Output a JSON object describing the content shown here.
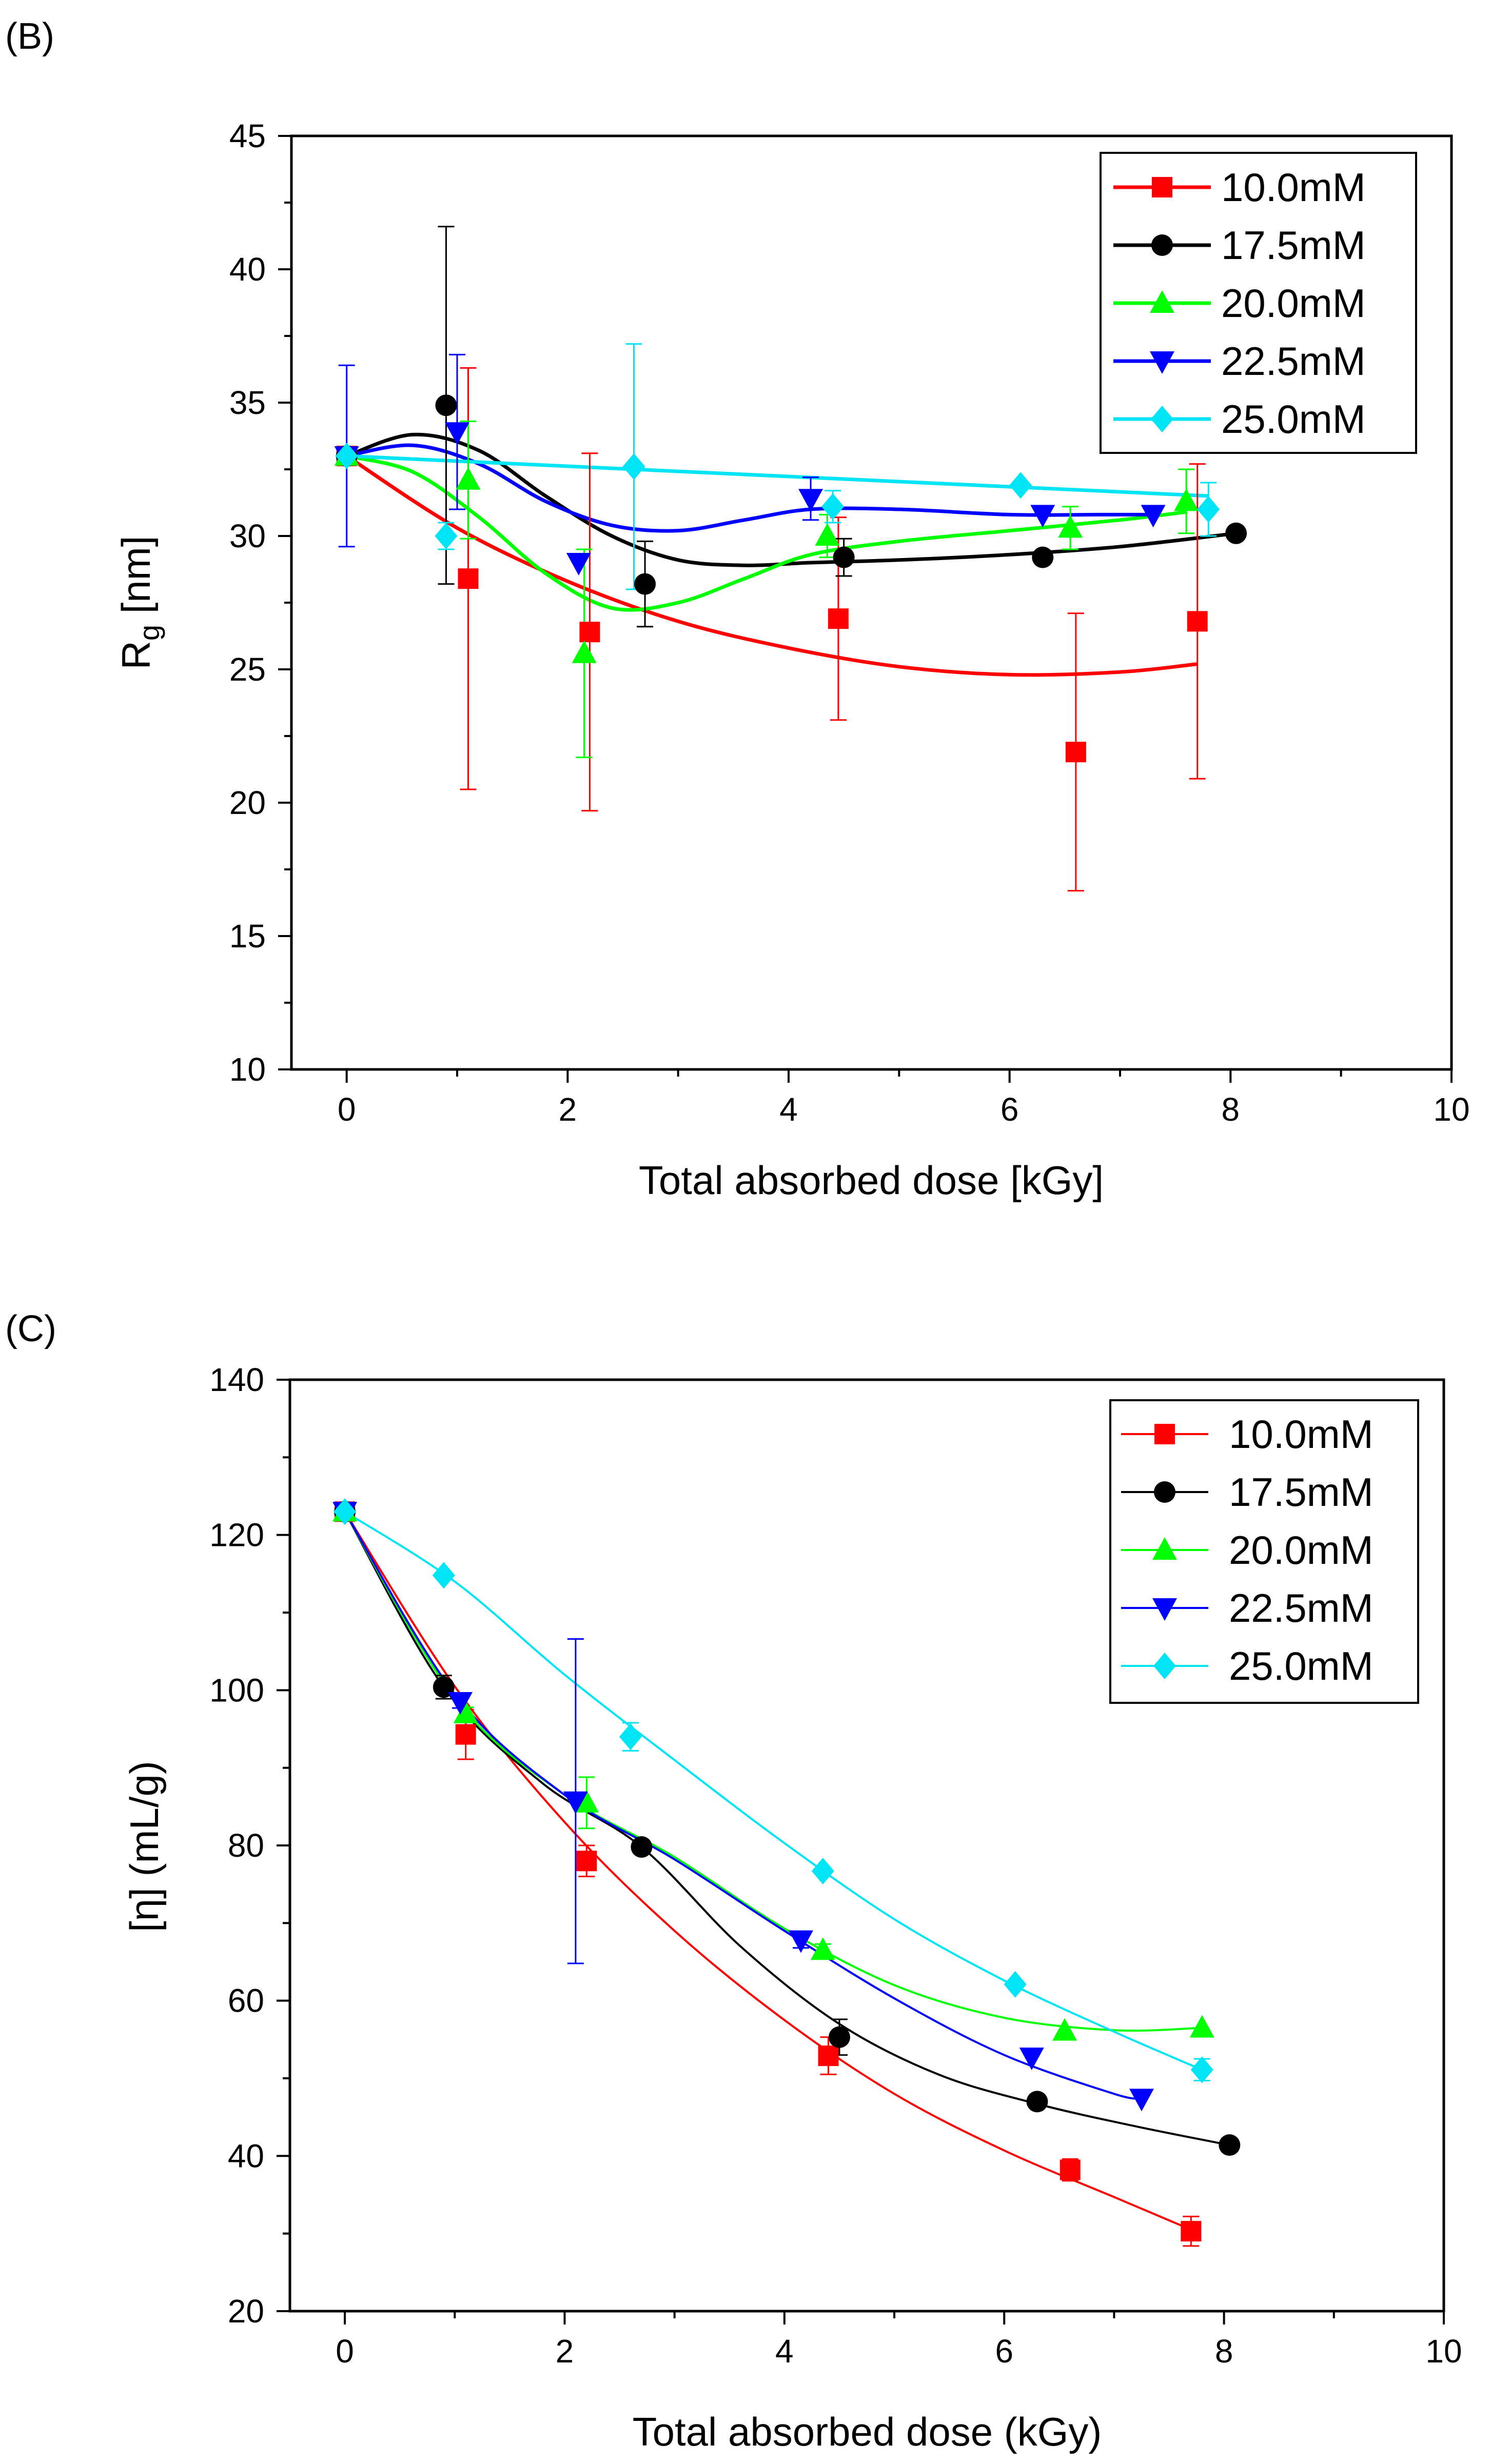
{
  "figure": {
    "panels": [
      "(B)",
      "(C)"
    ]
  },
  "chart_data": [
    {
      "panel_label": "(B)",
      "type": "scatter",
      "title": "",
      "xlabel": "Total absorbed dose [kGy]",
      "ylabel": "R",
      "ylabel_sub": "g",
      "ylabel_unit": " [nm]",
      "xlim": [
        -0.5,
        10
      ],
      "ylim": [
        10,
        45
      ],
      "xticks": [
        0,
        2,
        4,
        6,
        8,
        10
      ],
      "xtick_labels": [
        "0",
        "2",
        "4",
        "6",
        "8",
        "10"
      ],
      "yticks": [
        10,
        15,
        20,
        25,
        30,
        35,
        40,
        45
      ],
      "ytick_labels": [
        "10",
        "15",
        "20",
        "25",
        "30",
        "35",
        "40",
        "45"
      ],
      "grid": false,
      "legend_position": "top-right",
      "series": [
        {
          "name": "10.0mM",
          "color": "#ff0000",
          "marker": "square",
          "x": [
            0,
            1.1,
            2.2,
            4.45,
            6.6,
            7.7
          ],
          "y": [
            33.0,
            28.4,
            26.4,
            26.9,
            21.9,
            26.8
          ],
          "err": [
            0,
            7.9,
            6.7,
            3.8,
            5.2,
            5.9
          ],
          "fit": [
            [
              0,
              33.0
            ],
            [
              1,
              30.3
            ],
            [
              2,
              28.3
            ],
            [
              3,
              26.8
            ],
            [
              4,
              25.8
            ],
            [
              5,
              25.1
            ],
            [
              6,
              24.8
            ],
            [
              7,
              24.9
            ],
            [
              7.7,
              25.2
            ]
          ]
        },
        {
          "name": "17.5mM",
          "color": "#000000",
          "marker": "circle",
          "x": [
            0,
            0.9,
            2.7,
            4.5,
            6.3,
            8.05
          ],
          "y": [
            33.0,
            34.9,
            28.2,
            29.2,
            29.2,
            30.1
          ],
          "err": [
            0,
            6.7,
            1.6,
            0.7,
            0,
            0
          ],
          "fit": [
            [
              0,
              33.0
            ],
            [
              0.6,
              33.8
            ],
            [
              1.2,
              33.2
            ],
            [
              1.8,
              31.5
            ],
            [
              2.4,
              30.0
            ],
            [
              3.0,
              29.1
            ],
            [
              3.6,
              28.9
            ],
            [
              4.2,
              29.0
            ],
            [
              5.0,
              29.1
            ],
            [
              6.0,
              29.3
            ],
            [
              7.0,
              29.6
            ],
            [
              8.05,
              30.1
            ]
          ]
        },
        {
          "name": "20.0mM",
          "color": "#00ff00",
          "marker": "triangle-up",
          "x": [
            0,
            1.1,
            2.15,
            4.35,
            6.55,
            7.6
          ],
          "y": [
            33.0,
            32.1,
            25.6,
            30.0,
            30.3,
            31.3
          ],
          "err": [
            0,
            2.2,
            3.9,
            0.8,
            0.8,
            1.2
          ],
          "fit": [
            [
              0,
              33.0
            ],
            [
              0.6,
              32.4
            ],
            [
              1.2,
              30.7
            ],
            [
              1.8,
              28.6
            ],
            [
              2.4,
              27.3
            ],
            [
              3.0,
              27.5
            ],
            [
              3.6,
              28.4
            ],
            [
              4.2,
              29.3
            ],
            [
              5.0,
              29.8
            ],
            [
              6.0,
              30.2
            ],
            [
              7.0,
              30.6
            ],
            [
              7.6,
              30.9
            ]
          ]
        },
        {
          "name": "22.5mM",
          "color": "#0000ff",
          "marker": "triangle-down",
          "x": [
            0,
            1.0,
            2.1,
            4.2,
            6.3,
            7.3
          ],
          "y": [
            33.0,
            33.9,
            29.0,
            31.4,
            30.8,
            30.8
          ],
          "err": [
            3.4,
            2.9,
            0,
            0.8,
            0,
            0
          ],
          "fit": [
            [
              0,
              33.0
            ],
            [
              0.6,
              33.4
            ],
            [
              1.2,
              32.7
            ],
            [
              1.8,
              31.3
            ],
            [
              2.4,
              30.4
            ],
            [
              3.0,
              30.2
            ],
            [
              3.6,
              30.6
            ],
            [
              4.2,
              31.0
            ],
            [
              5.0,
              31.0
            ],
            [
              6.0,
              30.8
            ],
            [
              6.8,
              30.8
            ],
            [
              7.3,
              30.8
            ]
          ]
        },
        {
          "name": "25.0mM",
          "color": "#00e5f5",
          "marker": "diamond",
          "x": [
            0,
            0.9,
            2.6,
            4.4,
            6.1,
            7.8
          ],
          "y": [
            33.0,
            30.0,
            32.6,
            31.1,
            31.9,
            31.0
          ],
          "err": [
            0,
            0.5,
            4.6,
            0.6,
            0,
            1.0
          ],
          "fit": [
            [
              0,
              33.0
            ],
            [
              7.8,
              31.5
            ]
          ]
        }
      ]
    },
    {
      "panel_label": "(C)",
      "type": "scatter",
      "title": "",
      "xlabel": "Total absorbed dose (kGy)",
      "ylabel": "[η] (mL/g)",
      "xlim": [
        -0.5,
        10
      ],
      "ylim": [
        20,
        140
      ],
      "xticks": [
        0,
        2,
        4,
        6,
        8,
        10
      ],
      "xtick_labels": [
        "0",
        "2",
        "4",
        "6",
        "8",
        "10"
      ],
      "yticks": [
        20,
        40,
        60,
        80,
        100,
        120,
        140
      ],
      "ytick_labels": [
        "20",
        "40",
        "60",
        "80",
        "100",
        "120",
        "140"
      ],
      "grid": false,
      "legend_position": "top-right",
      "series": [
        {
          "name": "10.0mM",
          "color": "#ff0000",
          "marker": "square",
          "x": [
            0,
            1.1,
            2.2,
            4.4,
            6.6,
            7.7
          ],
          "y": [
            123,
            94.3,
            78.0,
            52.9,
            38.2,
            30.3
          ],
          "err": [
            0,
            3.2,
            2.0,
            2.4,
            1.4,
            1.9
          ],
          "fit": [
            [
              0,
              123
            ],
            [
              1,
              100.5
            ],
            [
              2,
              83
            ],
            [
              3,
              69
            ],
            [
              4,
              57.5
            ],
            [
              5,
              48
            ],
            [
              6,
              40.7
            ],
            [
              7,
              34.7
            ],
            [
              7.7,
              30.5
            ]
          ]
        },
        {
          "name": "17.5mM",
          "color": "#000000",
          "marker": "circle",
          "x": [
            0,
            0.9,
            2.7,
            4.5,
            6.3,
            8.05
          ],
          "y": [
            123,
            100.4,
            79.8,
            55.3,
            47.0,
            41.4
          ],
          "err": [
            0,
            1.5,
            0,
            2.3,
            0,
            0
          ],
          "fit": [
            [
              0,
              123
            ],
            [
              0.9,
              100.4
            ],
            [
              1.8,
              88
            ],
            [
              2.7,
              79.8
            ],
            [
              3.6,
              67
            ],
            [
              4.5,
              57
            ],
            [
              5.4,
              50.5
            ],
            [
              6.3,
              46.7
            ],
            [
              7.2,
              43.8
            ],
            [
              8.05,
              41.4
            ]
          ]
        },
        {
          "name": "20.0mM",
          "color": "#00ff00",
          "marker": "triangle-up",
          "x": [
            0,
            1.1,
            2.2,
            4.35,
            6.55,
            7.8
          ],
          "y": [
            123,
            97.0,
            85.5,
            66.5,
            56.1,
            56.5
          ],
          "err": [
            0,
            0.8,
            3.3,
            0.8,
            0,
            0
          ],
          "fit": [
            [
              0,
              123
            ],
            [
              1,
              99
            ],
            [
              2,
              86.5
            ],
            [
              3,
              78.5
            ],
            [
              4,
              69.3
            ],
            [
              5,
              62.0
            ],
            [
              6,
              57.8
            ],
            [
              7,
              56.2
            ],
            [
              7.8,
              56.5
            ]
          ]
        },
        {
          "name": "22.5mM",
          "color": "#0000ff",
          "marker": "triangle-down",
          "x": [
            0,
            1.05,
            2.1,
            4.15,
            6.25,
            7.25
          ],
          "y": [
            123,
            98.5,
            85.7,
            67.8,
            52.7,
            47.4
          ],
          "err": [
            0,
            0.8,
            20.9,
            1.0,
            0,
            0
          ],
          "fit": [
            [
              0,
              123
            ],
            [
              1,
              99.5
            ],
            [
              2,
              86.5
            ],
            [
              3,
              78.2
            ],
            [
              4,
              69.0
            ],
            [
              5,
              60.3
            ],
            [
              6,
              53.0
            ],
            [
              7,
              48.0
            ],
            [
              7.25,
              47.4
            ]
          ]
        },
        {
          "name": "25.0mM",
          "color": "#00e5f5",
          "marker": "diamond",
          "x": [
            0,
            0.9,
            2.6,
            4.35,
            6.1,
            7.8
          ],
          "y": [
            123,
            114.8,
            94.0,
            76.7,
            62.1,
            51.1
          ],
          "err": [
            0,
            0,
            1.8,
            0,
            0,
            1.4
          ],
          "fit": [
            [
              0,
              123
            ],
            [
              1,
              114
            ],
            [
              2,
              102
            ],
            [
              3,
              91
            ],
            [
              4,
              80.3
            ],
            [
              5,
              70.5
            ],
            [
              6,
              62.6
            ],
            [
              7,
              56.0
            ],
            [
              7.8,
              51.1
            ]
          ]
        }
      ]
    }
  ]
}
